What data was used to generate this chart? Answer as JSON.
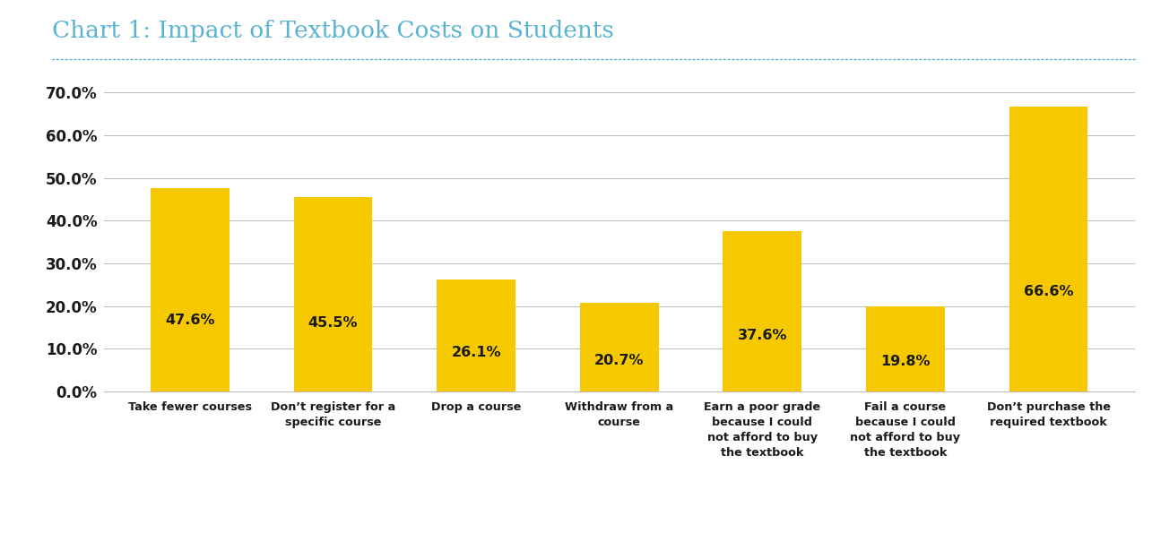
{
  "title": "Chart 1: Impact of Textbook Costs on Students",
  "title_color": "#5ab4d0",
  "title_fontsize": 19,
  "separator_color": "#5ab4d0",
  "categories": [
    "Take fewer courses",
    "Don’t register for a\nspecific course",
    "Drop a course",
    "Withdraw from a\ncourse",
    "Earn a poor grade\nbecause I could\nnot afford to buy\nthe textbook",
    "Fail a course\nbecause I could\nnot afford to buy\nthe textbook",
    "Don’t purchase the\nrequired textbook"
  ],
  "values": [
    47.6,
    45.5,
    26.1,
    20.7,
    37.6,
    19.8,
    66.6
  ],
  "bar_color": "#f5c800",
  "label_color": "#1a1a1a",
  "label_fontsize": 11.5,
  "ytick_labels": [
    "0.0%",
    "10.0%",
    "20.0%",
    "30.0%",
    "40.0%",
    "50.0%",
    "60.0%",
    "70.0%"
  ],
  "ylim": [
    0,
    74
  ],
  "yticks": [
    0,
    10,
    20,
    30,
    40,
    50,
    60,
    70
  ],
  "grid_color": "#bbbbbb",
  "background_color": "#ffffff",
  "tick_fontsize": 12,
  "xtick_fontsize": 9.2,
  "bar_width": 0.55
}
